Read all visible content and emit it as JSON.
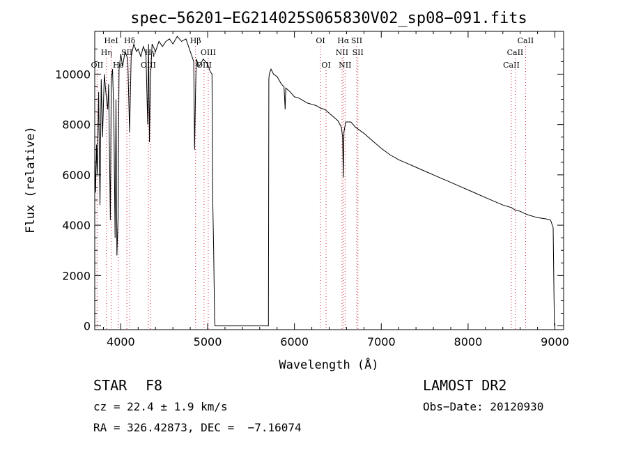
{
  "chart_data": {
    "type": "line",
    "title": "spec−56201−EG214025S065830V02_sp08−091.fits",
    "xlabel": "Wavelength (Å)",
    "ylabel": "Flux (relative)",
    "xlim": [
      3700,
      9100
    ],
    "ylim": [
      -150,
      11700
    ],
    "xticks": [
      4000,
      5000,
      6000,
      7000,
      8000,
      9000
    ],
    "yticks": [
      0,
      2000,
      4000,
      6000,
      8000,
      10000
    ],
    "series": [
      {
        "x": [
          3700,
          3710,
          3720,
          3730,
          3745,
          3760,
          3775,
          3790,
          3810,
          3830,
          3850,
          3860,
          3880,
          3890,
          3905,
          3920,
          3934,
          3945,
          3955,
          3968,
          3980,
          4000,
          4020,
          4050,
          4080,
          4101,
          4120,
          4150,
          4180,
          4200,
          4230,
          4260,
          4290,
          4310,
          4320,
          4330,
          4340,
          4360,
          4400,
          4440,
          4480,
          4520,
          4560,
          4600,
          4650,
          4700,
          4750,
          4800,
          4840,
          4850,
          4861,
          4870,
          4900,
          4950,
          5000,
          5030,
          5050,
          5060,
          5070,
          5080,
          5085,
          5100,
          5700,
          5705,
          5710,
          5730,
          5760,
          5800,
          5850,
          5880,
          5893,
          5900,
          5950,
          6000,
          6050,
          6100,
          6150,
          6200,
          6250,
          6300,
          6350,
          6400,
          6450,
          6500,
          6540,
          6555,
          6563,
          6570,
          6590,
          6650,
          6700,
          6800,
          6900,
          7000,
          7100,
          7200,
          7300,
          7400,
          7500,
          7600,
          7700,
          7800,
          7900,
          8000,
          8100,
          8200,
          8300,
          8400,
          8498,
          8542,
          8600,
          8662,
          8700,
          8800,
          8900,
          8950,
          8980,
          8990,
          8995
        ],
        "y": [
          6700,
          5300,
          7200,
          6000,
          9300,
          4800,
          9800,
          7500,
          10000,
          9200,
          8600,
          9600,
          4200,
          9800,
          10200,
          8400,
          3500,
          9000,
          2800,
          4200,
          10200,
          10800,
          10300,
          10900,
          10600,
          7700,
          10700,
          11200,
          10900,
          11000,
          10700,
          11100,
          10800,
          8000,
          11200,
          7300,
          9700,
          11200,
          10900,
          11300,
          11100,
          11300,
          11400,
          11200,
          11500,
          11300,
          11400,
          10900,
          10500,
          7000,
          9300,
          10600,
          10300,
          10600,
          10400,
          10100,
          10000,
          4800,
          3000,
          300,
          0,
          0,
          0,
          9800,
          10000,
          10200,
          10000,
          9900,
          9600,
          9500,
          8600,
          9450,
          9300,
          9100,
          9050,
          8950,
          8850,
          8800,
          8750,
          8650,
          8600,
          8450,
          8300,
          8150,
          7900,
          7500,
          5900,
          7700,
          8100,
          8100,
          7900,
          7650,
          7350,
          7050,
          6800,
          6600,
          6450,
          6300,
          6150,
          6000,
          5850,
          5700,
          5550,
          5400,
          5250,
          5100,
          4950,
          4800,
          4700,
          4600,
          4550,
          4450,
          4400,
          4300,
          4250,
          4200,
          3900,
          1000,
          0
        ]
      }
    ],
    "lines": [
      {
        "label": "OII",
        "wavelength": 3727,
        "row": 3
      },
      {
        "label": "Hη",
        "wavelength": 3835,
        "row": 2
      },
      {
        "label": "HeI",
        "wavelength": 3889,
        "row": 1
      },
      {
        "label": "Hε",
        "wavelength": 3970,
        "row": 3
      },
      {
        "label": "SII",
        "wavelength": 4070,
        "row": 2
      },
      {
        "label": "Hδ",
        "wavelength": 4102,
        "row": 1
      },
      {
        "label": "OIII",
        "wavelength": 4317,
        "row": 3
      },
      {
        "label": "Hγ",
        "wavelength": 4341,
        "row": 2
      },
      {
        "label": "Hβ",
        "wavelength": 4861,
        "row": 1
      },
      {
        "label": "OIII",
        "wavelength": 4959,
        "row": 3
      },
      {
        "label": "OIII",
        "wavelength": 5007,
        "row": 2
      },
      {
        "label": "OI",
        "wavelength": 6300,
        "row": 1
      },
      {
        "label": "OI",
        "wavelength": 6364,
        "row": 3
      },
      {
        "label": "NII",
        "wavelength": 6548,
        "row": 2
      },
      {
        "label": "Hα",
        "wavelength": 6563,
        "row": 1
      },
      {
        "label": "NII",
        "wavelength": 6583,
        "row": 3
      },
      {
        "label": "SII",
        "wavelength": 6717,
        "row": 1
      },
      {
        "label": "SII",
        "wavelength": 6731,
        "row": 2
      },
      {
        "label": "CaII",
        "wavelength": 8498,
        "row": 3
      },
      {
        "label": "CaII",
        "wavelength": 8542,
        "row": 2
      },
      {
        "label": "CaII",
        "wavelength": 8662,
        "row": 1
      }
    ]
  },
  "info": {
    "object_class": "STAR",
    "subclass": "F8",
    "cz": "cz = 22.4 ± 1.9 km/s",
    "coords": "RA = 326.42873, DEC =  −7.16074",
    "survey": "LAMOST DR2",
    "obs_date": "Obs−Date: 20120930"
  }
}
